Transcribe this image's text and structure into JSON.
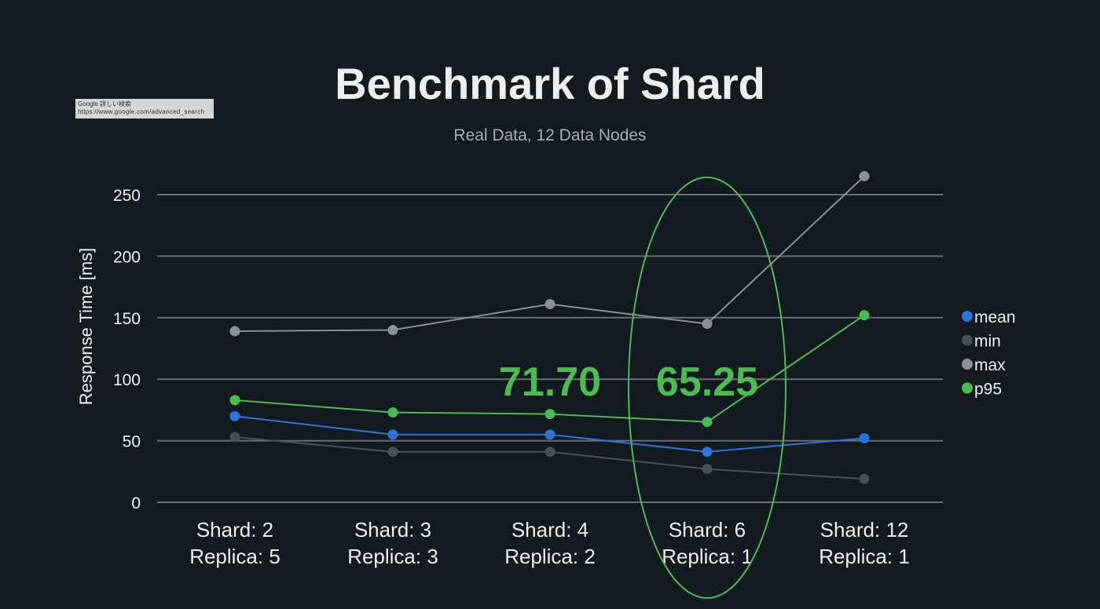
{
  "chart_data": {
    "type": "line",
    "title": "Benchmark of Shard",
    "subtitle": "Real Data, 12 Data Nodes",
    "ylabel": "Response Time [ms]",
    "xlabel": "",
    "ylim": [
      0,
      250
    ],
    "yticks": [
      0,
      50,
      100,
      150,
      200,
      250
    ],
    "grid": true,
    "legend_position": "right",
    "categories": [
      [
        "Shard: 2",
        "Replica: 5"
      ],
      [
        "Shard: 3",
        "Replica: 3"
      ],
      [
        "Shard: 4",
        "Replica: 2"
      ],
      [
        "Shard: 6",
        "Replica: 1"
      ],
      [
        "Shard: 12",
        "Replica: 1"
      ]
    ],
    "series": [
      {
        "name": "mean",
        "color": "#2d74d8",
        "values": [
          70,
          55,
          55,
          41,
          52
        ]
      },
      {
        "name": "min",
        "color": "#4a4f54",
        "values": [
          53,
          41,
          41,
          27,
          19
        ]
      },
      {
        "name": "max",
        "color": "#8d8f92",
        "values": [
          139,
          140,
          161,
          145,
          265
        ]
      },
      {
        "name": "p95",
        "color": "#4cbc52",
        "values": [
          83,
          73,
          71.7,
          65.25,
          152
        ]
      }
    ],
    "annotations": [
      {
        "text": "71.70",
        "category_index": 2,
        "color": "#4cbc52"
      },
      {
        "text": "65.25",
        "category_index": 3,
        "color": "#4cbc52"
      }
    ],
    "highlight": {
      "category_index": 3,
      "shape": "ellipse",
      "color": "#4cbc52"
    }
  },
  "tooltip": {
    "line1": "Google 詳しい検索",
    "line2": "https://www.google.com/advanced_search"
  }
}
